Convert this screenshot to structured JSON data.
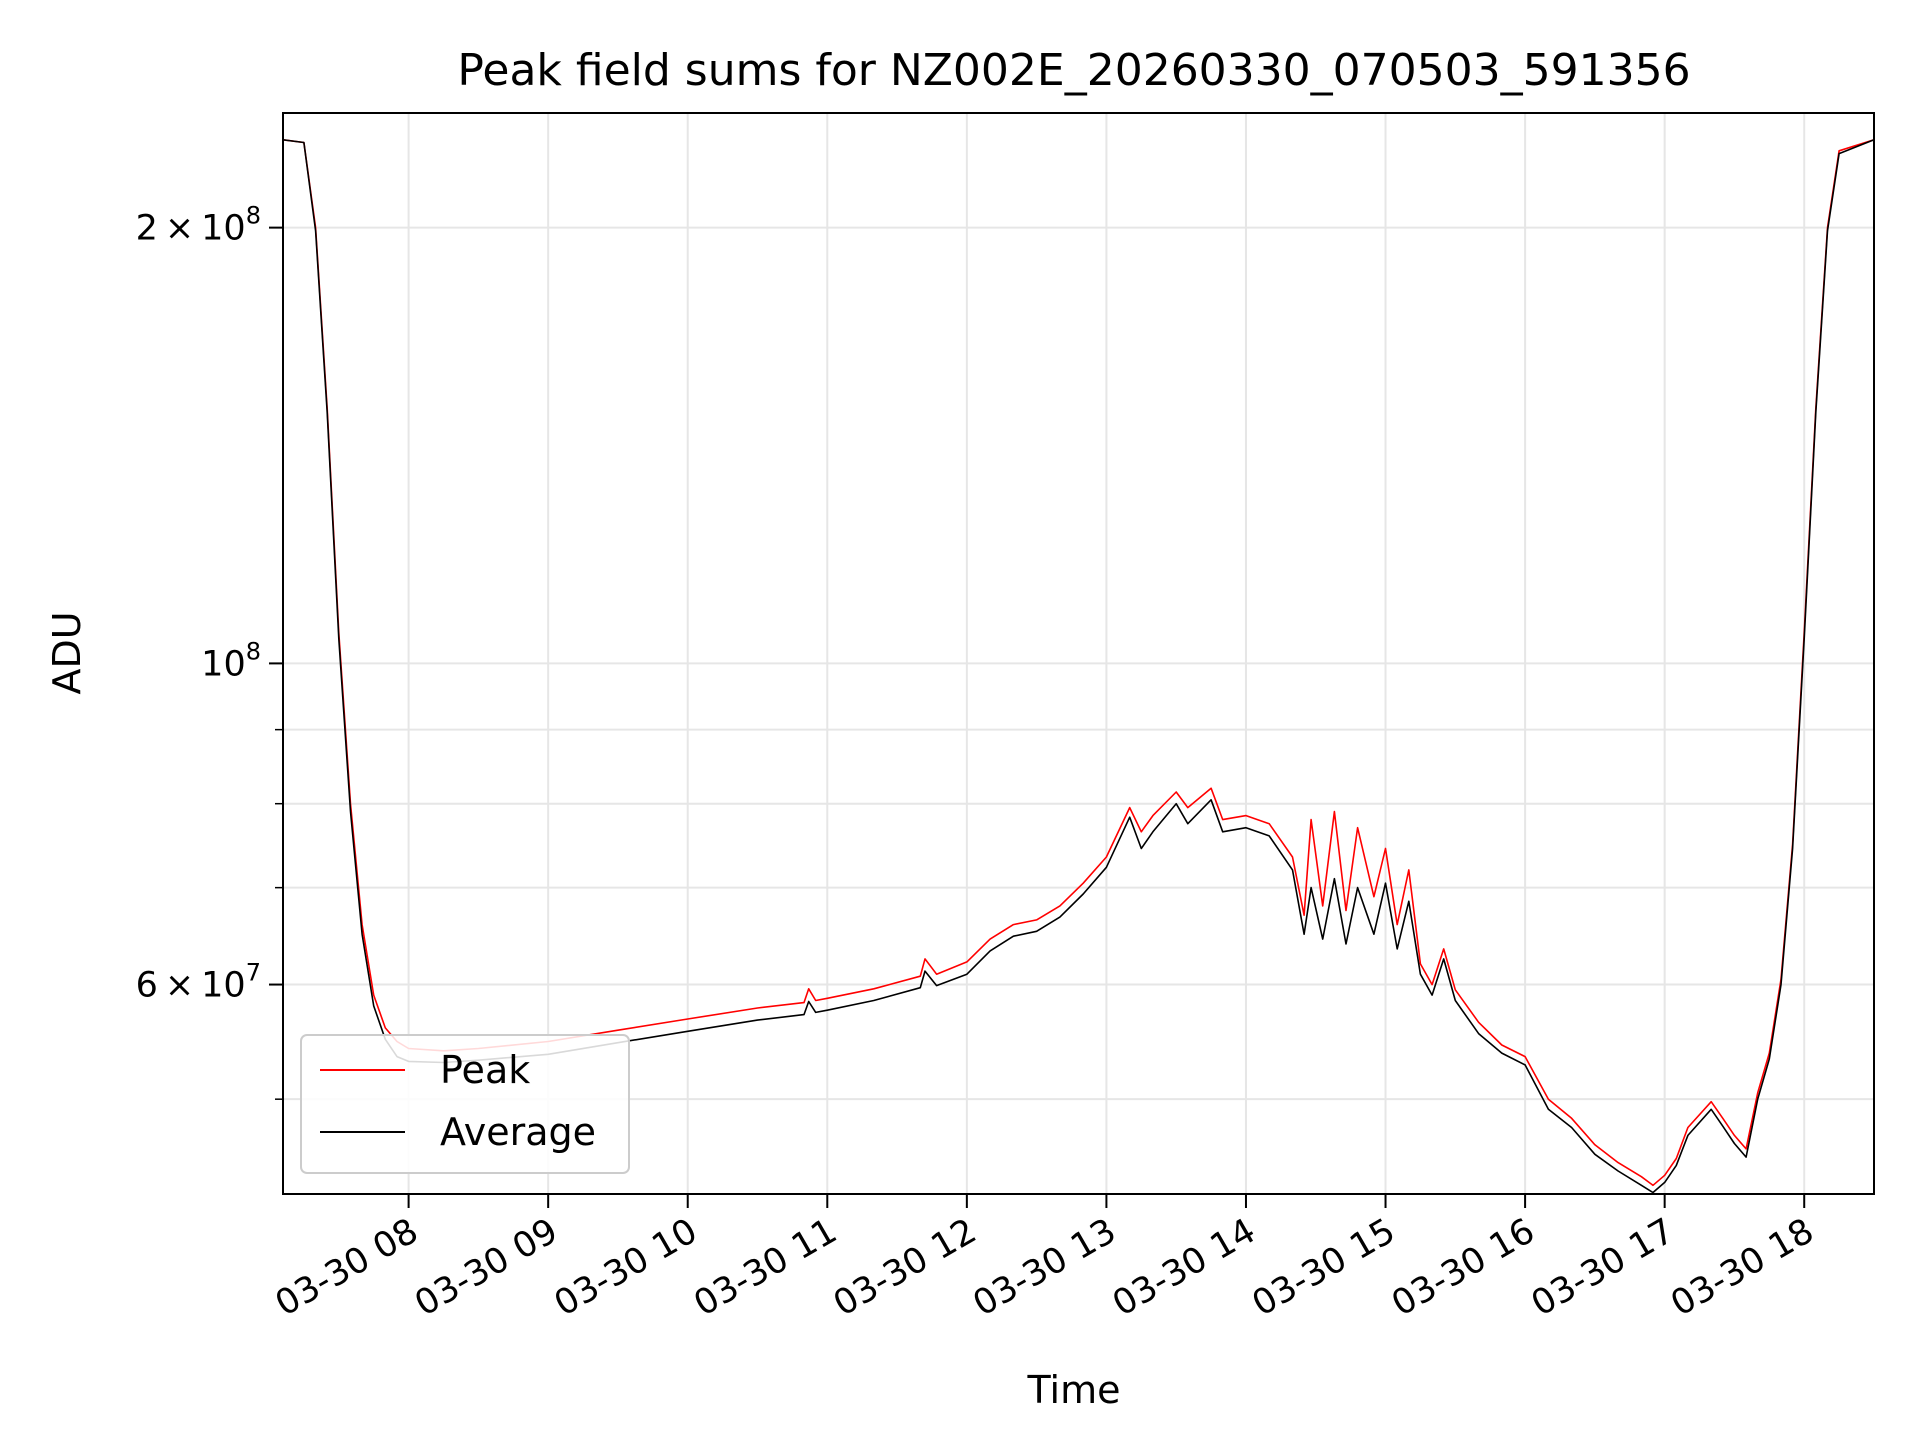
{
  "chart_data": {
    "type": "line",
    "title": "Peak field sums for NZ002E_20260330_070503_591356",
    "xlabel": "Time",
    "ylabel": "ADU",
    "yscale": "log",
    "grid": true,
    "legend_position": "lower-left",
    "xlim": [
      "2026-03-30 07:06",
      "2026-03-30 18:30"
    ],
    "ylim": [
      43000000,
      240000000
    ],
    "x_ticks": [
      {
        "t": "2026-03-30 08:00",
        "label": "03-30 08"
      },
      {
        "t": "2026-03-30 09:00",
        "label": "03-30 09"
      },
      {
        "t": "2026-03-30 10:00",
        "label": "03-30 10"
      },
      {
        "t": "2026-03-30 11:00",
        "label": "03-30 11"
      },
      {
        "t": "2026-03-30 12:00",
        "label": "03-30 12"
      },
      {
        "t": "2026-03-30 13:00",
        "label": "03-30 13"
      },
      {
        "t": "2026-03-30 14:00",
        "label": "03-30 14"
      },
      {
        "t": "2026-03-30 15:00",
        "label": "03-30 15"
      },
      {
        "t": "2026-03-30 16:00",
        "label": "03-30 16"
      },
      {
        "t": "2026-03-30 17:00",
        "label": "03-30 17"
      },
      {
        "t": "2026-03-30 18:00",
        "label": "03-30 18"
      }
    ],
    "y_major_ticks": [
      {
        "value": 60000000,
        "base": "6",
        "times": "×",
        "ten": "10",
        "exp": "7"
      },
      {
        "value": 100000000,
        "base": "",
        "times": "",
        "ten": "10",
        "exp": "8"
      },
      {
        "value": 200000000,
        "base": "2",
        "times": "×",
        "ten": "10",
        "exp": "8"
      }
    ],
    "y_minor_ticks": [
      50000000,
      70000000,
      80000000,
      90000000
    ],
    "series": [
      {
        "name": "Peak",
        "color": "#ff0000",
        "points": [
          [
            "2026-03-30 07:06",
            230000000
          ],
          [
            "2026-03-30 07:15",
            229000000
          ],
          [
            "2026-03-30 07:20",
            200000000
          ],
          [
            "2026-03-30 07:25",
            150000000
          ],
          [
            "2026-03-30 07:30",
            105000000
          ],
          [
            "2026-03-30 07:35",
            80000000
          ],
          [
            "2026-03-30 07:40",
            66000000
          ],
          [
            "2026-03-30 07:45",
            59000000
          ],
          [
            "2026-03-30 07:50",
            56000000
          ],
          [
            "2026-03-30 07:55",
            54800000
          ],
          [
            "2026-03-30 08:00",
            54200000
          ],
          [
            "2026-03-30 08:15",
            54000000
          ],
          [
            "2026-03-30 08:30",
            54200000
          ],
          [
            "2026-03-30 09:00",
            54800000
          ],
          [
            "2026-03-30 09:30",
            55800000
          ],
          [
            "2026-03-30 10:00",
            56800000
          ],
          [
            "2026-03-30 10:30",
            57800000
          ],
          [
            "2026-03-30 10:50",
            58300000
          ],
          [
            "2026-03-30 10:52",
            59600000
          ],
          [
            "2026-03-30 10:55",
            58500000
          ],
          [
            "2026-03-30 11:00",
            58700000
          ],
          [
            "2026-03-30 11:20",
            59600000
          ],
          [
            "2026-03-30 11:40",
            60800000
          ],
          [
            "2026-03-30 11:42",
            62500000
          ],
          [
            "2026-03-30 11:47",
            61000000
          ],
          [
            "2026-03-30 12:00",
            62200000
          ],
          [
            "2026-03-30 12:10",
            64500000
          ],
          [
            "2026-03-30 12:20",
            66000000
          ],
          [
            "2026-03-30 12:30",
            66500000
          ],
          [
            "2026-03-30 12:40",
            68000000
          ],
          [
            "2026-03-30 12:50",
            70500000
          ],
          [
            "2026-03-30 13:00",
            73500000
          ],
          [
            "2026-03-30 13:10",
            79500000
          ],
          [
            "2026-03-30 13:15",
            76500000
          ],
          [
            "2026-03-30 13:20",
            78500000
          ],
          [
            "2026-03-30 13:30",
            81500000
          ],
          [
            "2026-03-30 13:35",
            79500000
          ],
          [
            "2026-03-30 13:45",
            82000000
          ],
          [
            "2026-03-30 13:50",
            78000000
          ],
          [
            "2026-03-30 14:00",
            78500000
          ],
          [
            "2026-03-30 14:10",
            77500000
          ],
          [
            "2026-03-30 14:20",
            73500000
          ],
          [
            "2026-03-30 14:25",
            67000000
          ],
          [
            "2026-03-30 14:28",
            78000000
          ],
          [
            "2026-03-30 14:33",
            68000000
          ],
          [
            "2026-03-30 14:38",
            79000000
          ],
          [
            "2026-03-30 14:43",
            67500000
          ],
          [
            "2026-03-30 14:48",
            77000000
          ],
          [
            "2026-03-30 14:55",
            69000000
          ],
          [
            "2026-03-30 15:00",
            74500000
          ],
          [
            "2026-03-30 15:05",
            66000000
          ],
          [
            "2026-03-30 15:10",
            72000000
          ],
          [
            "2026-03-30 15:15",
            62000000
          ],
          [
            "2026-03-30 15:20",
            60000000
          ],
          [
            "2026-03-30 15:25",
            63500000
          ],
          [
            "2026-03-30 15:30",
            59500000
          ],
          [
            "2026-03-30 15:40",
            56500000
          ],
          [
            "2026-03-30 15:50",
            54500000
          ],
          [
            "2026-03-30 16:00",
            53500000
          ],
          [
            "2026-03-30 16:10",
            50000000
          ],
          [
            "2026-03-30 16:20",
            48500000
          ],
          [
            "2026-03-30 16:30",
            46500000
          ],
          [
            "2026-03-30 16:40",
            45200000
          ],
          [
            "2026-03-30 16:50",
            44200000
          ],
          [
            "2026-03-30 16:55",
            43600000
          ],
          [
            "2026-03-30 17:00",
            44300000
          ],
          [
            "2026-03-30 17:05",
            45500000
          ],
          [
            "2026-03-30 17:10",
            47800000
          ],
          [
            "2026-03-30 17:20",
            49800000
          ],
          [
            "2026-03-30 17:25",
            48500000
          ],
          [
            "2026-03-30 17:30",
            47200000
          ],
          [
            "2026-03-30 17:35",
            46200000
          ],
          [
            "2026-03-30 17:40",
            50500000
          ],
          [
            "2026-03-30 17:45",
            53800000
          ],
          [
            "2026-03-30 17:50",
            60500000
          ],
          [
            "2026-03-30 17:55",
            75000000
          ],
          [
            "2026-03-30 18:00",
            105000000
          ],
          [
            "2026-03-30 18:05",
            150000000
          ],
          [
            "2026-03-30 18:10",
            200000000
          ],
          [
            "2026-03-30 18:15",
            226000000
          ],
          [
            "2026-03-30 18:30",
            230000000
          ]
        ]
      },
      {
        "name": "Average",
        "color": "#000000",
        "points": [
          [
            "2026-03-30 07:06",
            230000000
          ],
          [
            "2026-03-30 07:15",
            229000000
          ],
          [
            "2026-03-30 07:20",
            199000000
          ],
          [
            "2026-03-30 07:25",
            149000000
          ],
          [
            "2026-03-30 07:30",
            104000000
          ],
          [
            "2026-03-30 07:35",
            79000000
          ],
          [
            "2026-03-30 07:40",
            65000000
          ],
          [
            "2026-03-30 07:45",
            58000000
          ],
          [
            "2026-03-30 07:50",
            55000000
          ],
          [
            "2026-03-30 07:55",
            53500000
          ],
          [
            "2026-03-30 08:00",
            53100000
          ],
          [
            "2026-03-30 08:15",
            53000000
          ],
          [
            "2026-03-30 08:30",
            53200000
          ],
          [
            "2026-03-30 09:00",
            53700000
          ],
          [
            "2026-03-30 09:30",
            54700000
          ],
          [
            "2026-03-30 10:00",
            55700000
          ],
          [
            "2026-03-30 10:30",
            56700000
          ],
          [
            "2026-03-30 10:50",
            57200000
          ],
          [
            "2026-03-30 10:52",
            58400000
          ],
          [
            "2026-03-30 10:55",
            57400000
          ],
          [
            "2026-03-30 11:00",
            57600000
          ],
          [
            "2026-03-30 11:20",
            58500000
          ],
          [
            "2026-03-30 11:40",
            59700000
          ],
          [
            "2026-03-30 11:42",
            61300000
          ],
          [
            "2026-03-30 11:47",
            59900000
          ],
          [
            "2026-03-30 12:00",
            61000000
          ],
          [
            "2026-03-30 12:10",
            63300000
          ],
          [
            "2026-03-30 12:20",
            64800000
          ],
          [
            "2026-03-30 12:30",
            65300000
          ],
          [
            "2026-03-30 12:40",
            66800000
          ],
          [
            "2026-03-30 12:50",
            69300000
          ],
          [
            "2026-03-30 13:00",
            72300000
          ],
          [
            "2026-03-30 13:10",
            78300000
          ],
          [
            "2026-03-30 13:15",
            74500000
          ],
          [
            "2026-03-30 13:20",
            76500000
          ],
          [
            "2026-03-30 13:30",
            80000000
          ],
          [
            "2026-03-30 13:35",
            77500000
          ],
          [
            "2026-03-30 13:45",
            80500000
          ],
          [
            "2026-03-30 13:50",
            76500000
          ],
          [
            "2026-03-30 14:00",
            77000000
          ],
          [
            "2026-03-30 14:10",
            76000000
          ],
          [
            "2026-03-30 14:20",
            72000000
          ],
          [
            "2026-03-30 14:25",
            65000000
          ],
          [
            "2026-03-30 14:28",
            70000000
          ],
          [
            "2026-03-30 14:33",
            64500000
          ],
          [
            "2026-03-30 14:38",
            71000000
          ],
          [
            "2026-03-30 14:43",
            64000000
          ],
          [
            "2026-03-30 14:48",
            70000000
          ],
          [
            "2026-03-30 14:55",
            65000000
          ],
          [
            "2026-03-30 15:00",
            70500000
          ],
          [
            "2026-03-30 15:05",
            63500000
          ],
          [
            "2026-03-30 15:10",
            68500000
          ],
          [
            "2026-03-30 15:15",
            61000000
          ],
          [
            "2026-03-30 15:20",
            59000000
          ],
          [
            "2026-03-30 15:25",
            62500000
          ],
          [
            "2026-03-30 15:30",
            58500000
          ],
          [
            "2026-03-30 15:40",
            55500000
          ],
          [
            "2026-03-30 15:50",
            53800000
          ],
          [
            "2026-03-30 16:00",
            52800000
          ],
          [
            "2026-03-30 16:10",
            49200000
          ],
          [
            "2026-03-30 16:20",
            47800000
          ],
          [
            "2026-03-30 16:30",
            45800000
          ],
          [
            "2026-03-30 16:40",
            44600000
          ],
          [
            "2026-03-30 16:50",
            43600000
          ],
          [
            "2026-03-30 16:55",
            43100000
          ],
          [
            "2026-03-30 17:00",
            43800000
          ],
          [
            "2026-03-30 17:05",
            45000000
          ],
          [
            "2026-03-30 17:10",
            47200000
          ],
          [
            "2026-03-30 17:20",
            49200000
          ],
          [
            "2026-03-30 17:25",
            47900000
          ],
          [
            "2026-03-30 17:30",
            46600000
          ],
          [
            "2026-03-30 17:35",
            45600000
          ],
          [
            "2026-03-30 17:40",
            50000000
          ],
          [
            "2026-03-30 17:45",
            53300000
          ],
          [
            "2026-03-30 17:50",
            60000000
          ],
          [
            "2026-03-30 17:55",
            74500000
          ],
          [
            "2026-03-30 18:00",
            104000000
          ],
          [
            "2026-03-30 18:05",
            149000000
          ],
          [
            "2026-03-30 18:10",
            199000000
          ],
          [
            "2026-03-30 18:15",
            225000000
          ],
          [
            "2026-03-30 18:30",
            230000000
          ]
        ]
      }
    ]
  }
}
